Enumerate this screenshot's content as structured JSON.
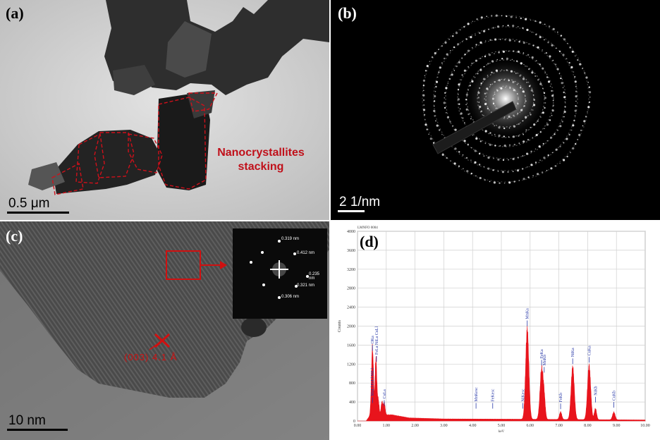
{
  "panels": {
    "a": {
      "label": "(a)",
      "annotation_line1": "Nanocrystallites",
      "annotation_line2": "stacking",
      "scale_bar": "0.5 μm",
      "annotation_color": "#c0101a"
    },
    "b": {
      "label": "(b)",
      "scale_bar": "2 1/nm"
    },
    "c": {
      "label": "(c)",
      "scale_bar": "10 nm",
      "lattice_label": "(003) 4.1 Å",
      "fft_labels": [
        "0.319 nm",
        "0.412 nm",
        "0.235 nm",
        "0.321 nm",
        "0.306 nm"
      ]
    },
    "d": {
      "label": "(d)"
    }
  },
  "chart_data": {
    "type": "line",
    "title": "LMNFO 0004",
    "xlabel": "keV",
    "ylabel": "Counts",
    "xlim": [
      0,
      10
    ],
    "ylim": [
      0,
      4000
    ],
    "x_ticks": [
      "0.00",
      "1.00",
      "2.00",
      "3.00",
      "4.00",
      "5.00",
      "6.00",
      "7.00",
      "8.00",
      "9.00",
      "10.00"
    ],
    "y_ticks": [
      "0",
      "400",
      "800",
      "1200",
      "1600",
      "2000",
      "2400",
      "2800",
      "3200",
      "3600",
      "4000"
    ],
    "grid": true,
    "fill_color": "#e8141c",
    "series": [
      {
        "peaks": [
          {
            "x": 0.52,
            "y": 1350,
            "w": 0.035
          },
          {
            "x": 0.64,
            "y": 1120,
            "w": 0.03
          },
          {
            "x": 0.72,
            "y": 300,
            "w": 0.03
          },
          {
            "x": 0.85,
            "y": 260,
            "w": 0.03
          },
          {
            "x": 0.93,
            "y": 240,
            "w": 0.03
          },
          {
            "x": 5.9,
            "y": 1800,
            "w": 0.055
          },
          {
            "x": 6.4,
            "y": 1000,
            "w": 0.055
          },
          {
            "x": 6.49,
            "y": 330,
            "w": 0.04
          },
          {
            "x": 7.06,
            "y": 150,
            "w": 0.04
          },
          {
            "x": 7.48,
            "y": 1050,
            "w": 0.055
          },
          {
            "x": 8.05,
            "y": 1080,
            "w": 0.055
          },
          {
            "x": 8.27,
            "y": 220,
            "w": 0.04
          },
          {
            "x": 8.91,
            "y": 150,
            "w": 0.045
          }
        ],
        "baseline": [
          [
            0.3,
            0
          ],
          [
            0.45,
            120
          ],
          [
            1.2,
            120
          ],
          [
            1.8,
            60
          ],
          [
            3.0,
            40
          ],
          [
            5.5,
            35
          ],
          [
            10.0,
            20
          ]
        ]
      }
    ],
    "annotations": [
      {
        "text": "OKa",
        "x": 0.52,
        "y": 1480
      },
      {
        "text": "MnLl FeLl NiLl",
        "x": 0.52,
        "y": 380
      },
      {
        "text": "FeLa NiLa CuLl",
        "x": 0.66,
        "y": 1250
      },
      {
        "text": "CuLa",
        "x": 0.93,
        "y": 320
      },
      {
        "text": "MnKesc",
        "x": 4.12,
        "y": 260
      },
      {
        "text": "FeKesc",
        "x": 4.7,
        "y": 260
      },
      {
        "text": "NiKesc",
        "x": 5.75,
        "y": 260
      },
      {
        "text": "MnKa",
        "x": 5.9,
        "y": 2000
      },
      {
        "text": "FeKa",
        "x": 6.4,
        "y": 1170
      },
      {
        "text": "MnKb",
        "x": 6.49,
        "y": 1020
      },
      {
        "text": "FeKb",
        "x": 7.06,
        "y": 250
      },
      {
        "text": "NiKa",
        "x": 7.48,
        "y": 1200
      },
      {
        "text": "CuKa",
        "x": 8.05,
        "y": 1230
      },
      {
        "text": "NiKb",
        "x": 8.27,
        "y": 390
      },
      {
        "text": "CuKb",
        "x": 8.91,
        "y": 280
      }
    ]
  }
}
